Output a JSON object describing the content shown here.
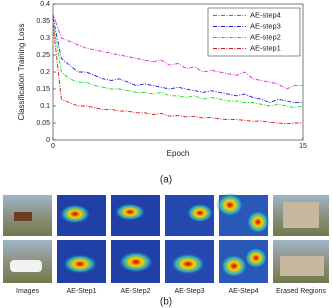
{
  "chart_data": {
    "type": "line",
    "ylabel": "Classification Training Loss",
    "xlabel": "Epoch",
    "x": [
      0,
      0.5,
      1,
      1.5,
      2,
      2.5,
      3,
      3.5,
      4,
      4.5,
      5,
      5.5,
      6,
      6.5,
      7,
      7.5,
      8,
      8.5,
      9,
      9.5,
      10,
      10.5,
      11,
      11.5,
      12,
      12.5,
      13,
      13.5,
      14,
      14.5,
      15
    ],
    "series": [
      {
        "name": "AE-step4",
        "color": "#e020e0",
        "values": [
          0.37,
          0.3,
          0.29,
          0.28,
          0.27,
          0.265,
          0.26,
          0.255,
          0.25,
          0.245,
          0.24,
          0.235,
          0.23,
          0.235,
          0.22,
          0.225,
          0.21,
          0.215,
          0.2,
          0.205,
          0.2,
          0.195,
          0.19,
          0.2,
          0.18,
          0.175,
          0.17,
          0.165,
          0.15,
          0.16,
          0.16
        ]
      },
      {
        "name": "AE-step3",
        "color": "#1a1ae0",
        "values": [
          0.36,
          0.24,
          0.22,
          0.2,
          0.2,
          0.19,
          0.18,
          0.175,
          0.18,
          0.17,
          0.16,
          0.165,
          0.16,
          0.155,
          0.15,
          0.155,
          0.15,
          0.145,
          0.14,
          0.145,
          0.14,
          0.135,
          0.13,
          0.135,
          0.125,
          0.12,
          0.11,
          0.12,
          0.115,
          0.11,
          0.11
        ]
      },
      {
        "name": "AE-step2",
        "color": "#10dd10",
        "values": [
          0.35,
          0.2,
          0.18,
          0.17,
          0.17,
          0.16,
          0.155,
          0.15,
          0.15,
          0.145,
          0.14,
          0.14,
          0.135,
          0.14,
          0.13,
          0.13,
          0.125,
          0.13,
          0.12,
          0.125,
          0.12,
          0.115,
          0.115,
          0.11,
          0.11,
          0.105,
          0.1,
          0.105,
          0.1,
          0.095,
          0.1
        ]
      },
      {
        "name": "AE-step1",
        "color": "#e01010",
        "values": [
          0.34,
          0.12,
          0.11,
          0.1,
          0.1,
          0.095,
          0.09,
          0.09,
          0.085,
          0.085,
          0.08,
          0.08,
          0.075,
          0.078,
          0.07,
          0.072,
          0.068,
          0.07,
          0.065,
          0.066,
          0.062,
          0.06,
          0.06,
          0.058,
          0.055,
          0.056,
          0.052,
          0.05,
          0.048,
          0.05,
          0.05
        ]
      }
    ],
    "xlim": [
      0,
      15
    ],
    "xticks": [
      0,
      15
    ],
    "ylim": [
      0,
      0.4
    ],
    "yticks": [
      0,
      0.05,
      0.1,
      0.15,
      0.2,
      0.25,
      0.3,
      0.35,
      0.4
    ],
    "legend": "upper right",
    "grid": false
  },
  "figure": {
    "caption_a": "(a)",
    "caption_b": "(b)",
    "column_labels": [
      "Images",
      "AE-Step1",
      "AE-Step2",
      "AE-Step3",
      "AE-Step4",
      "Erased Regions"
    ]
  }
}
